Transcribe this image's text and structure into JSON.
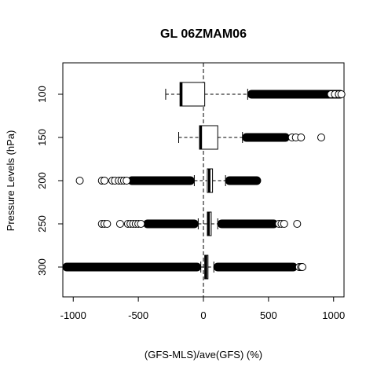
{
  "chart_data": {
    "type": "boxplot",
    "title": "GL 06ZMAM06",
    "xlabel": "(GFS-MLS)/ave(GFS) (%)",
    "ylabel": "Pressure Levels (hPa)",
    "xlim": [
      -1080,
      1080
    ],
    "x_ticks": [
      -1000,
      -500,
      0,
      500,
      1000
    ],
    "x_tick_labels": [
      "-1000",
      "-500",
      "0",
      "500",
      "1000"
    ],
    "reference_line_x": 0,
    "categories": [
      "100",
      "150",
      "200",
      "250",
      "300"
    ],
    "boxes": [
      {
        "label": "100",
        "whisker_low": -290,
        "q1": -180,
        "median": -170,
        "q3": 10,
        "whisker_high": 340,
        "dense_outliers": [
          [
            340,
            1080
          ]
        ],
        "outliers_high": [
          980,
          1010,
          1040,
          1060
        ]
      },
      {
        "label": "150",
        "whisker_low": -190,
        "q1": -30,
        "median": -20,
        "q3": 110,
        "whisker_high": 300,
        "dense_outliers": [
          [
            300,
            660
          ]
        ],
        "outliers_high": [
          680,
          710,
          750,
          905
        ]
      },
      {
        "label": "200",
        "whisker_low": -70,
        "q1": 30,
        "median": 45,
        "q3": 70,
        "whisker_high": 170,
        "dense_outliers": [
          [
            -580,
            -70
          ],
          [
            170,
            440
          ]
        ],
        "outliers_low": [
          -950,
          -780,
          -760,
          -700,
          -680,
          -650,
          -630,
          -610,
          -590
        ]
      },
      {
        "label": "250",
        "whisker_low": -40,
        "q1": 30,
        "median": 40,
        "q3": 60,
        "whisker_high": 110,
        "dense_outliers": [
          [
            -460,
            -40
          ],
          [
            110,
            570
          ]
        ],
        "outliers_low": [
          -780,
          -760,
          -740,
          -640,
          -580,
          -560,
          -540,
          -520,
          -500,
          -480
        ],
        "outliers_high": [
          580,
          600,
          620,
          720
        ]
      },
      {
        "label": "300",
        "whisker_low": -20,
        "q1": 10,
        "median": 20,
        "q3": 35,
        "whisker_high": 80,
        "dense_outliers": [
          [
            -1080,
            -20
          ],
          [
            80,
            720
          ]
        ],
        "outliers_high": [
          735,
          750,
          760
        ]
      }
    ]
  }
}
